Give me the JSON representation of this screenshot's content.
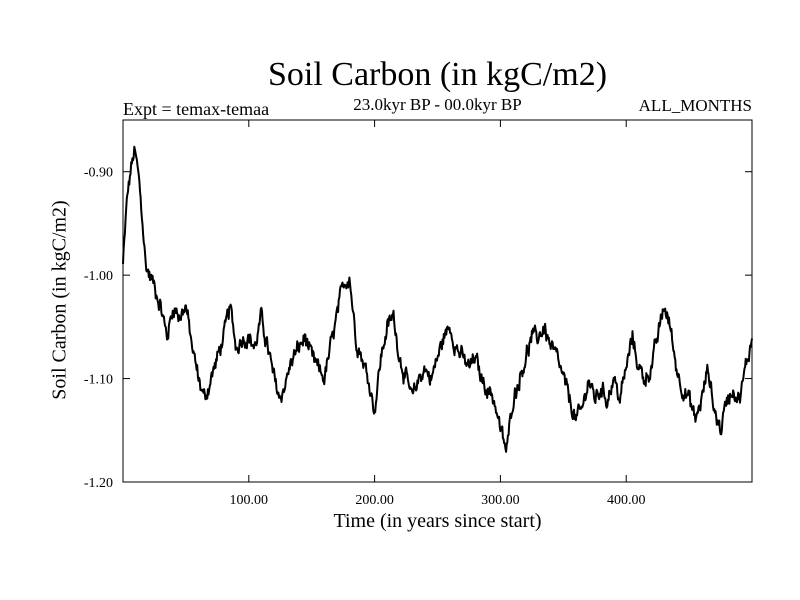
{
  "chart_data": {
    "type": "line",
    "title": "Soil Carbon (in kgC/m2)",
    "experiment": "Expt = temax-temaa",
    "period": "23.0kyr BP - 00.0kyr BP",
    "months": "ALL_MONTHS",
    "xlabel": "Time (in years since start)",
    "ylabel": "Soil Carbon (in kgC/m2)",
    "xlim": [
      0,
      500
    ],
    "ylim": [
      -1.2,
      -0.85
    ],
    "xticks": [
      100,
      200,
      300,
      400
    ],
    "xtick_labels": [
      "100.00",
      "200.00",
      "300.00",
      "400.00"
    ],
    "yticks": [
      -0.9,
      -1.0,
      -1.1,
      -1.2
    ],
    "ytick_labels": [
      "-0.90",
      "-1.00",
      "-1.10",
      "-1.20"
    ],
    "series": [
      {
        "name": "temax-temaa",
        "color": "#000000",
        "anchor_x": [
          0,
          3,
          6,
          9,
          12,
          15,
          18,
          21,
          25,
          30,
          35,
          40,
          45,
          50,
          55,
          60,
          65,
          70,
          75,
          80,
          85,
          90,
          95,
          100,
          105,
          110,
          115,
          120,
          125,
          130,
          135,
          140,
          145,
          150,
          155,
          160,
          165,
          170,
          175,
          180,
          185,
          190,
          195,
          200,
          205,
          210,
          215,
          220,
          225,
          230,
          235,
          240,
          245,
          250,
          255,
          260,
          265,
          270,
          275,
          280,
          285,
          290,
          295,
          300,
          305,
          310,
          315,
          320,
          325,
          330,
          335,
          340,
          345,
          350,
          355,
          360,
          365,
          370,
          375,
          380,
          385,
          390,
          395,
          400,
          405,
          410,
          415,
          420,
          425,
          430,
          435,
          440,
          445,
          450,
          455,
          460,
          465,
          470,
          475,
          480,
          485,
          490,
          495,
          500
        ],
        "anchor_y": [
          -0.99,
          -0.93,
          -0.9,
          -0.88,
          -0.9,
          -0.94,
          -0.99,
          -1.0,
          -1.01,
          -1.03,
          -1.06,
          -1.03,
          -1.04,
          -1.03,
          -1.07,
          -1.1,
          -1.12,
          -1.1,
          -1.08,
          -1.06,
          -1.03,
          -1.07,
          -1.06,
          -1.06,
          -1.07,
          -1.04,
          -1.07,
          -1.1,
          -1.12,
          -1.1,
          -1.08,
          -1.07,
          -1.06,
          -1.08,
          -1.09,
          -1.1,
          -1.07,
          -1.04,
          -1.01,
          -1.0,
          -1.06,
          -1.08,
          -1.1,
          -1.13,
          -1.08,
          -1.05,
          -1.04,
          -1.08,
          -1.1,
          -1.12,
          -1.1,
          -1.09,
          -1.1,
          -1.08,
          -1.06,
          -1.05,
          -1.07,
          -1.08,
          -1.09,
          -1.08,
          -1.1,
          -1.11,
          -1.12,
          -1.15,
          -1.17,
          -1.12,
          -1.1,
          -1.08,
          -1.06,
          -1.06,
          -1.05,
          -1.07,
          -1.08,
          -1.1,
          -1.12,
          -1.14,
          -1.13,
          -1.1,
          -1.12,
          -1.11,
          -1.12,
          -1.1,
          -1.12,
          -1.09,
          -1.06,
          -1.09,
          -1.1,
          -1.09,
          -1.06,
          -1.03,
          -1.05,
          -1.09,
          -1.11,
          -1.12,
          -1.14,
          -1.12,
          -1.09,
          -1.13,
          -1.15,
          -1.12,
          -1.11,
          -1.12,
          -1.09,
          -1.06
        ]
      }
    ]
  }
}
